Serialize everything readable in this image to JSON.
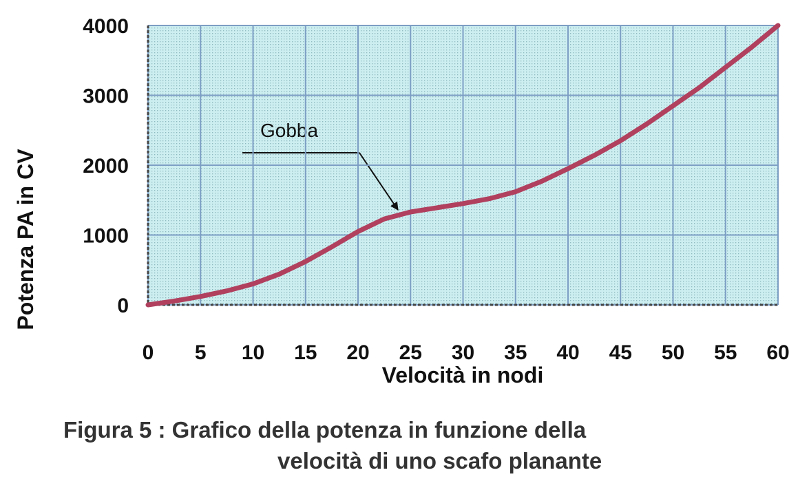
{
  "chart_data": {
    "type": "line",
    "x_label": "Velocità in nodi",
    "y_label": "Potenza  PA  in  CV",
    "x": [
      0,
      2.5,
      5,
      7.5,
      10,
      12.5,
      15,
      17.5,
      20,
      22.5,
      25,
      27.5,
      30,
      32.5,
      35,
      37.5,
      40,
      42.5,
      45,
      47.5,
      50,
      52.5,
      55,
      57.5,
      60
    ],
    "series": [
      {
        "name": "Potenza",
        "color": "#b0405e",
        "values": [
          0,
          55,
          120,
          200,
          300,
          440,
          620,
          830,
          1050,
          1230,
          1330,
          1390,
          1450,
          1520,
          1620,
          1770,
          1950,
          2140,
          2350,
          2590,
          2850,
          3110,
          3400,
          3690,
          4000
        ]
      }
    ],
    "xlim": [
      0,
      60
    ],
    "xticks": [
      0,
      5,
      10,
      15,
      20,
      25,
      30,
      35,
      40,
      45,
      50,
      55,
      60
    ],
    "ylim": [
      0,
      4000
    ],
    "yticks": [
      0,
      1000,
      2000,
      3000,
      4000
    ],
    "grid": true,
    "annotation": "Gobba",
    "caption": [
      "Figura 5 : Grafico della potenza in funzione della",
      "velocità di uno scafo planante"
    ]
  }
}
